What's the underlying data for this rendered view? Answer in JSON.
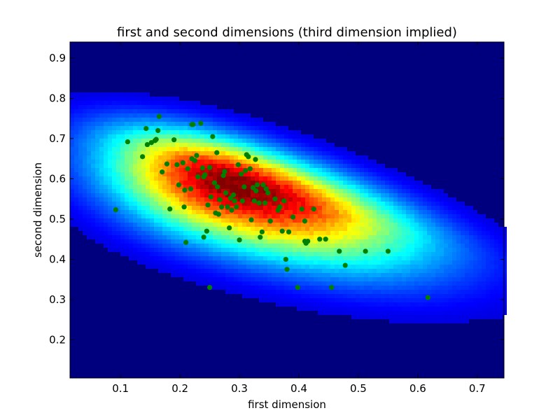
{
  "chart_data": {
    "type": "heatmap",
    "title": "first and second dimensions (third dimension implied)",
    "xlabel": "first dimension",
    "ylabel": "second dimension",
    "xlim": [
      0.015,
      0.745
    ],
    "ylim": [
      0.105,
      0.94
    ],
    "x_ticks": [
      "0.1",
      "0.2",
      "0.3",
      "0.4",
      "0.5",
      "0.6",
      "0.7"
    ],
    "y_ticks": [
      "0.2",
      "0.3",
      "0.4",
      "0.5",
      "0.6",
      "0.7",
      "0.8",
      "0.9"
    ],
    "grid": false,
    "colormap": "jet",
    "background_color": "#00007f",
    "point_color": "#007f00",
    "heatmap_peak": {
      "x": 0.29,
      "y": 0.59
    },
    "scatter": {
      "x": [
        0.092,
        0.112,
        0.137,
        0.143,
        0.145,
        0.152,
        0.158,
        0.16,
        0.163,
        0.165,
        0.17,
        0.178,
        0.183,
        0.19,
        0.195,
        0.198,
        0.207,
        0.208,
        0.21,
        0.213,
        0.218,
        0.22,
        0.222,
        0.225,
        0.228,
        0.235,
        0.238,
        0.24,
        0.242,
        0.245,
        0.247,
        0.25,
        0.252,
        0.255,
        0.258,
        0.26,
        0.262,
        0.263,
        0.265,
        0.267,
        0.27,
        0.273,
        0.275,
        0.277,
        0.28,
        0.283,
        0.285,
        0.287,
        0.29,
        0.292,
        0.295,
        0.298,
        0.3,
        0.303,
        0.305,
        0.308,
        0.31,
        0.312,
        0.315,
        0.318,
        0.32,
        0.323,
        0.325,
        0.327,
        0.328,
        0.33,
        0.333,
        0.335,
        0.338,
        0.34,
        0.343,
        0.345,
        0.348,
        0.352,
        0.36,
        0.365,
        0.368,
        0.372,
        0.375,
        0.378,
        0.38,
        0.383,
        0.39,
        0.398,
        0.405,
        0.41,
        0.41,
        0.412,
        0.415,
        0.425,
        0.435,
        0.445,
        0.455,
        0.468,
        0.478,
        0.512,
        0.55,
        0.617,
        0.25,
        0.22,
        0.23,
        0.205,
        0.24
      ],
      "y": [
        0.523,
        0.692,
        0.655,
        0.725,
        0.685,
        0.69,
        0.695,
        0.698,
        0.72,
        0.755,
        0.617,
        0.637,
        0.525,
        0.697,
        0.635,
        0.585,
        0.53,
        0.572,
        0.442,
        0.625,
        0.575,
        0.65,
        0.735,
        0.645,
        0.658,
        0.738,
        0.627,
        0.605,
        0.61,
        0.47,
        0.535,
        0.628,
        0.555,
        0.705,
        0.59,
        0.515,
        0.665,
        0.58,
        0.512,
        0.548,
        0.53,
        0.608,
        0.618,
        0.565,
        0.53,
        0.478,
        0.552,
        0.522,
        0.56,
        0.545,
        0.53,
        0.635,
        0.448,
        0.612,
        0.545,
        0.58,
        0.62,
        0.66,
        0.655,
        0.625,
        0.498,
        0.578,
        0.545,
        0.648,
        0.57,
        0.585,
        0.54,
        0.455,
        0.468,
        0.585,
        0.54,
        0.575,
        0.565,
        0.495,
        0.55,
        0.522,
        0.53,
        0.47,
        0.545,
        0.4,
        0.375,
        0.468,
        0.505,
        0.33,
        0.525,
        0.495,
        0.445,
        0.44,
        0.445,
        0.525,
        0.45,
        0.45,
        0.33,
        0.42,
        0.385,
        0.42,
        0.42,
        0.305,
        0.33,
        0.735,
        0.605,
        0.64,
        0.455
      ]
    }
  }
}
